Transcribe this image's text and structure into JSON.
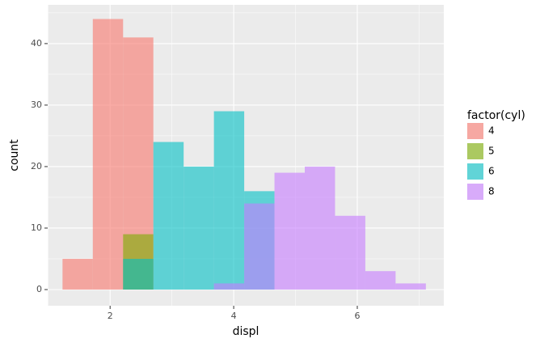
{
  "chart_data": {
    "type": "histogram",
    "x_label": "displ",
    "y_label": "count",
    "legend_title": "factor(cyl)",
    "legend_position": "right",
    "bins": [
      1.23,
      1.72,
      2.21,
      2.7,
      3.19,
      3.68,
      4.17,
      4.66,
      5.15,
      5.64,
      6.13,
      6.62,
      7.11
    ],
    "series": [
      {
        "name": "4",
        "color": "#F8766D",
        "values": [
          5,
          44,
          41,
          0,
          0,
          0,
          0,
          0,
          0,
          0,
          0,
          0
        ]
      },
      {
        "name": "5",
        "color": "#7CAE00",
        "values": [
          0,
          0,
          9,
          0,
          0,
          0,
          0,
          0,
          0,
          0,
          0,
          0
        ]
      },
      {
        "name": "6",
        "color": "#00BFC4",
        "values": [
          0,
          0,
          5,
          24,
          20,
          29,
          16,
          0,
          0,
          0,
          0,
          0
        ]
      },
      {
        "name": "8",
        "color": "#C77CFF",
        "values": [
          0,
          0,
          0,
          0,
          0,
          1,
          14,
          19,
          20,
          12,
          3,
          1
        ]
      }
    ],
    "xlim": [
      0.99,
      7.4
    ],
    "xticks": [
      2,
      4,
      6
    ],
    "ylim": [
      -2.63,
      46.3
    ],
    "yticks": [
      0,
      10,
      20,
      30,
      40
    ],
    "grid": true
  }
}
